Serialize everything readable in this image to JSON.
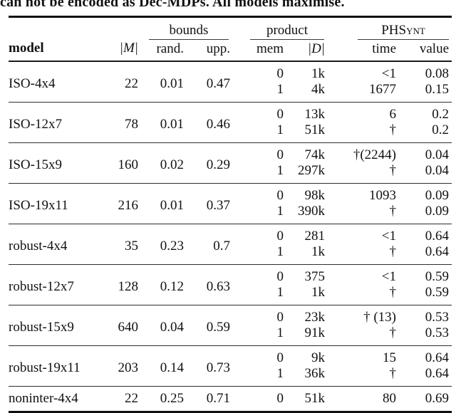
{
  "caption": "can not be encoded as Dec-MDPs. All models maximise.",
  "table": {
    "columns": {
      "model": "model",
      "m_size": "|M|",
      "bounds": {
        "label": "bounds",
        "rand": "rand.",
        "upp": "upp."
      },
      "product": {
        "label": "product",
        "mem": "mem",
        "d_size": "|D|"
      },
      "phsynt": {
        "label": "PHSynt",
        "time": "time",
        "value": "value"
      }
    },
    "rows": [
      {
        "model": "ISO-4x4",
        "m_size": "22",
        "rand": "0.01",
        "upp": "0.47",
        "sub": [
          {
            "mem": "0",
            "d_size": "1k",
            "time": "<1",
            "value": "0.08"
          },
          {
            "mem": "1",
            "d_size": "4k",
            "time": "1677",
            "value": "0.15"
          }
        ]
      },
      {
        "model": "ISO-12x7",
        "m_size": "78",
        "rand": "0.01",
        "upp": "0.46",
        "sub": [
          {
            "mem": "0",
            "d_size": "13k",
            "time": "6",
            "value": "0.2"
          },
          {
            "mem": "1",
            "d_size": "51k",
            "time": "†",
            "value": "0.2"
          }
        ]
      },
      {
        "model": "ISO-15x9",
        "m_size": "160",
        "rand": "0.02",
        "upp": "0.29",
        "sub": [
          {
            "mem": "0",
            "d_size": "74k",
            "time": "†(2244)",
            "value": "0.04"
          },
          {
            "mem": "1",
            "d_size": "297k",
            "time": "†",
            "value": "0.04"
          }
        ]
      },
      {
        "model": "ISO-19x11",
        "m_size": "216",
        "rand": "0.01",
        "upp": "0.37",
        "sub": [
          {
            "mem": "0",
            "d_size": "98k",
            "time": "1093",
            "value": "0.09"
          },
          {
            "mem": "1",
            "d_size": "390k",
            "time": "†",
            "value": "0.09"
          }
        ]
      },
      {
        "model": "robust-4x4",
        "m_size": "35",
        "rand": "0.23",
        "upp": "0.7",
        "sub": [
          {
            "mem": "0",
            "d_size": "281",
            "time": "<1",
            "value": "0.64"
          },
          {
            "mem": "1",
            "d_size": "1k",
            "time": "†",
            "value": "0.64"
          }
        ]
      },
      {
        "model": "robust-12x7",
        "m_size": "128",
        "rand": "0.12",
        "upp": "0.63",
        "sub": [
          {
            "mem": "0",
            "d_size": "375",
            "time": "<1",
            "value": "0.59"
          },
          {
            "mem": "1",
            "d_size": "1k",
            "time": "†",
            "value": "0.59"
          }
        ]
      },
      {
        "model": "robust-15x9",
        "m_size": "640",
        "rand": "0.04",
        "upp": "0.59",
        "sub": [
          {
            "mem": "0",
            "d_size": "23k",
            "time": "† (13)",
            "value": "0.53"
          },
          {
            "mem": "1",
            "d_size": "91k",
            "time": "†",
            "value": "0.53"
          }
        ]
      },
      {
        "model": "robust-19x11",
        "m_size": "203",
        "rand": "0.14",
        "upp": "0.73",
        "sub": [
          {
            "mem": "0",
            "d_size": "9k",
            "time": "15",
            "value": "0.64"
          },
          {
            "mem": "1",
            "d_size": "36k",
            "time": "†",
            "value": "0.64"
          }
        ]
      },
      {
        "model": "noninter-4x4",
        "m_size": "22",
        "rand": "0.25",
        "upp": "0.71",
        "sub": [
          {
            "mem": "0",
            "d_size": "51k",
            "time": "80",
            "value": "0.69"
          }
        ]
      }
    ]
  }
}
